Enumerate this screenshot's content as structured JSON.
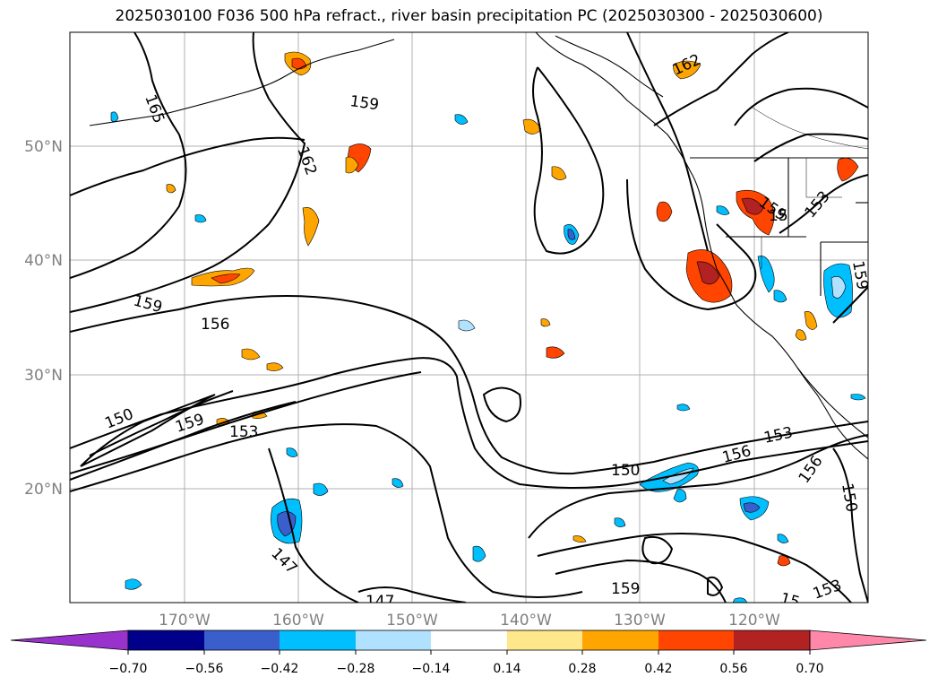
{
  "title": "2025030100 F036 500 hPa refract., river basin precipitation PC (2025030300 - 2025030600)",
  "map": {
    "lon_labels": [
      "170°W",
      "160°W",
      "150°W",
      "140°W",
      "130°W",
      "120°W"
    ],
    "lat_labels": [
      "50°N",
      "40°N",
      "30°N",
      "20°N"
    ],
    "contour_labels": [
      "165",
      "159",
      "162",
      "159",
      "156",
      "150",
      "159",
      "153",
      "147",
      "147",
      "150",
      "156",
      "153",
      "156",
      "150",
      "153",
      "159",
      "162",
      "159",
      "153",
      "15",
      "159",
      "15"
    ]
  },
  "colorbar": {
    "tick_labels": [
      "−0.70",
      "−0.56",
      "−0.42",
      "−0.28",
      "−0.14",
      "0.14",
      "0.28",
      "0.42",
      "0.56",
      "0.70"
    ],
    "colors": {
      "under": "#9932cc",
      "bins": [
        "#00008b",
        "#3a5fcd",
        "#00bfff",
        "#b0e2ff",
        "#ffffff",
        "#ffe78c",
        "#ffa500",
        "#ff4500",
        "#b22222",
        "#ff88aa"
      ],
      "over": "#ff88aa"
    }
  }
}
